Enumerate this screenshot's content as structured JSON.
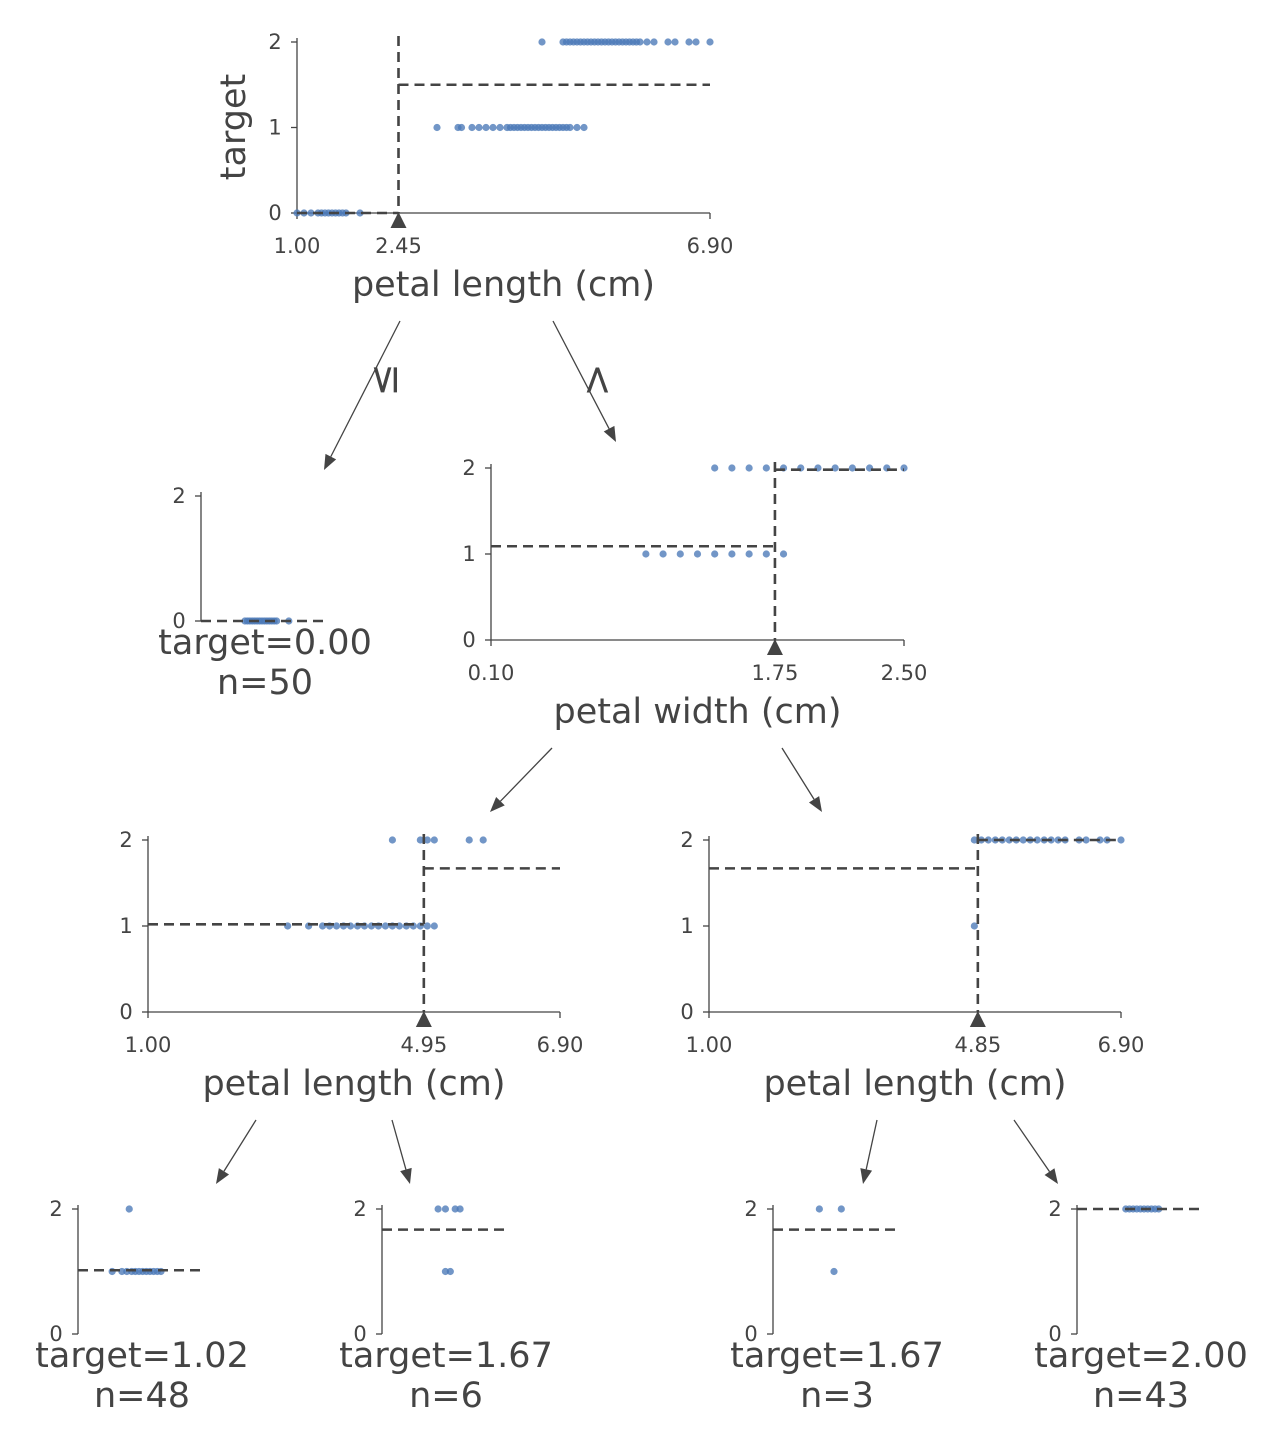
{
  "tree": {
    "y_label": "target",
    "split_nodes": [
      {
        "id": "n0",
        "feature": "petal length (cm)",
        "domain": [
          1.0,
          6.9
        ],
        "threshold": 2.45,
        "tick_labels": [
          "1.00",
          "2.45",
          "6.90"
        ],
        "y_ticks": [
          "0",
          "1",
          "2"
        ],
        "left_mean": 0.0,
        "right_mean": 1.5,
        "points": [
          [
            1.0,
            0
          ],
          [
            1.1,
            0
          ],
          [
            1.2,
            0
          ],
          [
            1.3,
            0
          ],
          [
            1.35,
            0
          ],
          [
            1.4,
            0
          ],
          [
            1.45,
            0
          ],
          [
            1.5,
            0
          ],
          [
            1.55,
            0
          ],
          [
            1.6,
            0
          ],
          [
            1.65,
            0
          ],
          [
            1.7,
            0
          ],
          [
            1.9,
            0
          ],
          [
            3.0,
            1
          ],
          [
            3.3,
            1
          ],
          [
            3.35,
            1
          ],
          [
            3.5,
            1
          ],
          [
            3.6,
            1
          ],
          [
            3.7,
            1
          ],
          [
            3.8,
            1
          ],
          [
            3.9,
            1
          ],
          [
            4.0,
            1
          ],
          [
            4.05,
            1
          ],
          [
            4.1,
            1
          ],
          [
            4.15,
            1
          ],
          [
            4.2,
            1
          ],
          [
            4.25,
            1
          ],
          [
            4.3,
            1
          ],
          [
            4.35,
            1
          ],
          [
            4.4,
            1
          ],
          [
            4.45,
            1
          ],
          [
            4.5,
            1
          ],
          [
            4.55,
            1
          ],
          [
            4.6,
            1
          ],
          [
            4.65,
            1
          ],
          [
            4.7,
            1
          ],
          [
            4.75,
            1
          ],
          [
            4.8,
            1
          ],
          [
            4.85,
            1
          ],
          [
            4.9,
            1
          ],
          [
            5.0,
            1
          ],
          [
            5.1,
            1
          ],
          [
            4.5,
            2
          ],
          [
            4.8,
            2
          ],
          [
            4.85,
            2
          ],
          [
            4.9,
            2
          ],
          [
            4.95,
            2
          ],
          [
            5.0,
            2
          ],
          [
            5.05,
            2
          ],
          [
            5.1,
            2
          ],
          [
            5.15,
            2
          ],
          [
            5.2,
            2
          ],
          [
            5.25,
            2
          ],
          [
            5.3,
            2
          ],
          [
            5.35,
            2
          ],
          [
            5.4,
            2
          ],
          [
            5.45,
            2
          ],
          [
            5.5,
            2
          ],
          [
            5.55,
            2
          ],
          [
            5.6,
            2
          ],
          [
            5.65,
            2
          ],
          [
            5.7,
            2
          ],
          [
            5.75,
            2
          ],
          [
            5.8,
            2
          ],
          [
            5.85,
            2
          ],
          [
            5.9,
            2
          ],
          [
            6.0,
            2
          ],
          [
            6.1,
            2
          ],
          [
            6.3,
            2
          ],
          [
            6.4,
            2
          ],
          [
            6.6,
            2
          ],
          [
            6.7,
            2
          ],
          [
            6.9,
            2
          ]
        ]
      },
      {
        "id": "n2",
        "feature": "petal width (cm)",
        "domain": [
          0.1,
          2.5
        ],
        "threshold": 1.75,
        "tick_labels": [
          "0.10",
          "1.75",
          "2.50"
        ],
        "y_ticks": [
          "0",
          "1",
          "2"
        ],
        "left_mean": 1.09,
        "right_mean": 1.98,
        "points": [
          [
            1.0,
            1
          ],
          [
            1.1,
            1
          ],
          [
            1.2,
            1
          ],
          [
            1.3,
            1
          ],
          [
            1.4,
            1
          ],
          [
            1.5,
            1
          ],
          [
            1.6,
            1
          ],
          [
            1.7,
            1
          ],
          [
            1.8,
            1
          ],
          [
            1.4,
            2
          ],
          [
            1.5,
            2
          ],
          [
            1.6,
            2
          ],
          [
            1.7,
            2
          ],
          [
            1.8,
            2
          ],
          [
            1.9,
            2
          ],
          [
            2.0,
            2
          ],
          [
            2.1,
            2
          ],
          [
            2.2,
            2
          ],
          [
            2.3,
            2
          ],
          [
            2.4,
            2
          ],
          [
            2.5,
            2
          ]
        ]
      },
      {
        "id": "n3",
        "feature": "petal length (cm)",
        "domain": [
          1.0,
          6.9
        ],
        "threshold": 4.95,
        "tick_labels": [
          "1.00",
          "4.95",
          "6.90"
        ],
        "y_ticks": [
          "0",
          "1",
          "2"
        ],
        "left_mean": 1.02,
        "right_mean": 1.67,
        "points": [
          [
            3.0,
            1
          ],
          [
            3.3,
            1
          ],
          [
            3.5,
            1
          ],
          [
            3.6,
            1
          ],
          [
            3.7,
            1
          ],
          [
            3.8,
            1
          ],
          [
            3.9,
            1
          ],
          [
            4.0,
            1
          ],
          [
            4.1,
            1
          ],
          [
            4.2,
            1
          ],
          [
            4.3,
            1
          ],
          [
            4.4,
            1
          ],
          [
            4.5,
            1
          ],
          [
            4.6,
            1
          ],
          [
            4.7,
            1
          ],
          [
            4.8,
            1
          ],
          [
            4.9,
            1
          ],
          [
            5.0,
            1
          ],
          [
            5.1,
            1
          ],
          [
            4.5,
            2
          ],
          [
            4.9,
            2
          ],
          [
            5.0,
            2
          ],
          [
            5.1,
            2
          ],
          [
            5.6,
            2
          ],
          [
            5.8,
            2
          ]
        ]
      },
      {
        "id": "n6",
        "feature": "petal length (cm)",
        "domain": [
          1.0,
          6.9
        ],
        "threshold": 4.85,
        "tick_labels": [
          "1.00",
          "4.85",
          "6.90"
        ],
        "y_ticks": [
          "0",
          "1",
          "2"
        ],
        "left_mean": 1.67,
        "right_mean": 2.0,
        "points": [
          [
            4.8,
            1
          ],
          [
            4.8,
            2
          ],
          [
            4.9,
            2
          ],
          [
            5.0,
            2
          ],
          [
            5.1,
            2
          ],
          [
            5.2,
            2
          ],
          [
            5.3,
            2
          ],
          [
            5.4,
            2
          ],
          [
            5.5,
            2
          ],
          [
            5.6,
            2
          ],
          [
            5.7,
            2
          ],
          [
            5.8,
            2
          ],
          [
            5.9,
            2
          ],
          [
            6.0,
            2
          ],
          [
            6.1,
            2
          ],
          [
            6.3,
            2
          ],
          [
            6.4,
            2
          ],
          [
            6.6,
            2
          ],
          [
            6.7,
            2
          ],
          [
            6.9,
            2
          ]
        ]
      }
    ],
    "edge_labels": {
      "left": "≤",
      "right": ">"
    },
    "leaves": [
      {
        "id": "n1",
        "target": "target=0.00",
        "n": "n=50",
        "mean": 0.0,
        "y_ticks": [
          "0",
          "2"
        ],
        "points": [
          [
            0.36,
            0
          ],
          [
            0.38,
            0
          ],
          [
            0.4,
            0
          ],
          [
            0.42,
            0
          ],
          [
            0.44,
            0
          ],
          [
            0.46,
            0
          ],
          [
            0.48,
            0
          ],
          [
            0.5,
            0
          ],
          [
            0.52,
            0
          ],
          [
            0.54,
            0
          ],
          [
            0.56,
            0
          ],
          [
            0.58,
            0
          ],
          [
            0.6,
            0
          ],
          [
            0.62,
            0
          ],
          [
            0.72,
            0
          ]
        ]
      },
      {
        "id": "n4",
        "target": "target=1.02",
        "n": "n=48",
        "mean": 1.02,
        "y_ticks": [
          "0",
          "2"
        ],
        "points": [
          [
            0.28,
            1
          ],
          [
            0.36,
            1
          ],
          [
            0.4,
            1
          ],
          [
            0.44,
            1
          ],
          [
            0.47,
            1
          ],
          [
            0.5,
            1
          ],
          [
            0.53,
            1
          ],
          [
            0.56,
            1
          ],
          [
            0.59,
            1
          ],
          [
            0.62,
            1
          ],
          [
            0.65,
            1
          ],
          [
            0.68,
            1
          ],
          [
            0.42,
            2
          ]
        ]
      },
      {
        "id": "n5",
        "target": "target=1.67",
        "n": "n=6",
        "mean": 1.67,
        "y_ticks": [
          "0",
          "2"
        ],
        "points": [
          [
            0.52,
            1
          ],
          [
            0.56,
            1
          ],
          [
            0.46,
            2
          ],
          [
            0.52,
            2
          ],
          [
            0.6,
            2
          ],
          [
            0.64,
            2
          ]
        ]
      },
      {
        "id": "n7",
        "target": "target=1.67",
        "n": "n=3",
        "mean": 1.67,
        "y_ticks": [
          "0",
          "2"
        ],
        "points": [
          [
            0.5,
            1
          ],
          [
            0.38,
            2
          ],
          [
            0.56,
            2
          ]
        ]
      },
      {
        "id": "n8",
        "target": "target=2.00",
        "n": "n=43",
        "mean": 2.0,
        "y_ticks": [
          "0",
          "2"
        ],
        "points": [
          [
            0.4,
            2
          ],
          [
            0.43,
            2
          ],
          [
            0.46,
            2
          ],
          [
            0.49,
            2
          ],
          [
            0.52,
            2
          ],
          [
            0.55,
            2
          ],
          [
            0.58,
            2
          ],
          [
            0.61,
            2
          ],
          [
            0.64,
            2
          ],
          [
            0.67,
            2
          ]
        ]
      }
    ],
    "colors": {
      "points": "#4a78b7",
      "lines": "#444444"
    }
  }
}
